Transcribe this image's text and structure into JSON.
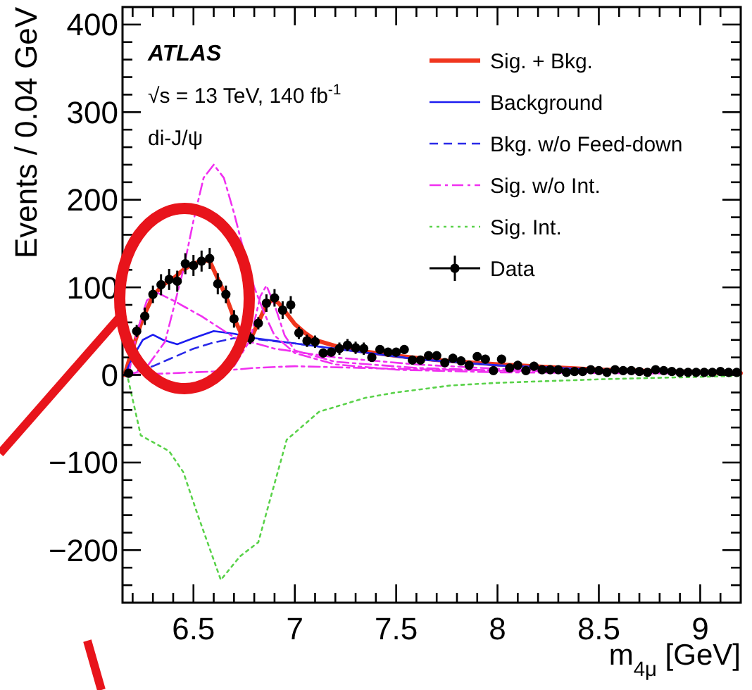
{
  "chart_data": {
    "type": "line",
    "xlabel": "m$_{4μ}$ [GeV]",
    "ylabel": "Events / 0.04 GeV",
    "annotations": [
      "ATLAS",
      "√s = 13 TeV, 140 fb$^{-1}$",
      "di-J/ψ"
    ],
    "xlim": [
      6.15,
      9.2
    ],
    "ylim": [
      -260,
      420
    ],
    "xticks": [
      {
        "value": 6.2,
        "label": null
      },
      {
        "value": 6.3,
        "label": null
      },
      {
        "value": 6.4,
        "label": null
      },
      6.5,
      {
        "value": 6.6,
        "label": null
      },
      {
        "value": 6.7,
        "label": null
      },
      {
        "value": 6.8,
        "label": null
      },
      {
        "value": 6.9,
        "label": null
      },
      7,
      {
        "value": 7.1,
        "label": null
      },
      {
        "value": 7.2,
        "label": null
      },
      {
        "value": 7.3,
        "label": null
      },
      {
        "value": 7.4,
        "label": null
      },
      7.5,
      {
        "value": 7.6,
        "label": null
      },
      {
        "value": 7.7,
        "label": null
      },
      {
        "value": 7.8,
        "label": null
      },
      {
        "value": 7.9,
        "label": null
      },
      8,
      {
        "value": 8.1,
        "label": null
      },
      {
        "value": 8.2,
        "label": null
      },
      {
        "value": 8.3,
        "label": null
      },
      {
        "value": 8.4,
        "label": null
      },
      8.5,
      {
        "value": 8.6,
        "label": null
      },
      {
        "value": 8.7,
        "label": null
      },
      {
        "value": 8.8,
        "label": null
      },
      {
        "value": 8.9,
        "label": null
      },
      9,
      {
        "value": 9.1,
        "label": null
      }
    ],
    "yticks": [
      {
        "value": -240,
        "label": null
      },
      {
        "value": -220,
        "label": null
      },
      {
        "value": -200,
        "label": "−200"
      },
      {
        "value": -180,
        "label": null
      },
      {
        "value": -160,
        "label": null
      },
      {
        "value": -140,
        "label": null
      },
      {
        "value": -120,
        "label": null
      },
      {
        "value": -100,
        "label": "−100"
      },
      {
        "value": -80,
        "label": null
      },
      {
        "value": -60,
        "label": null
      },
      {
        "value": -40,
        "label": null
      },
      {
        "value": -20,
        "label": null
      },
      0,
      {
        "value": 20,
        "label": null
      },
      {
        "value": 40,
        "label": null
      },
      {
        "value": 60,
        "label": null
      },
      {
        "value": 80,
        "label": null
      },
      100,
      {
        "value": 120,
        "label": null
      },
      {
        "value": 140,
        "label": null
      },
      {
        "value": 160,
        "label": null
      },
      {
        "value": 180,
        "label": null
      },
      200,
      {
        "value": 220,
        "label": null
      },
      {
        "value": 240,
        "label": null
      },
      {
        "value": 260,
        "label": null
      },
      {
        "value": 280,
        "label": null
      },
      300,
      {
        "value": 320,
        "label": null
      },
      {
        "value": 340,
        "label": null
      },
      {
        "value": 360,
        "label": null
      },
      {
        "value": 380,
        "label": null
      },
      400
    ],
    "grid": false,
    "legend": "top right",
    "series": [
      {
        "name": "Sig. + Bkg.",
        "color": "#f0361e",
        "line_style": "solid",
        "x": [
          6.16,
          6.2,
          6.25,
          6.3,
          6.35,
          6.4,
          6.45,
          6.5,
          6.55,
          6.58,
          6.62,
          6.66,
          6.7,
          6.74,
          6.78,
          6.82,
          6.86,
          6.89,
          6.92,
          6.96,
          7.0,
          7.05,
          7.1,
          7.2,
          7.3,
          7.5,
          7.7,
          8.0,
          8.5,
          9.0,
          9.2
        ],
        "values": [
          0,
          30,
          65,
          90,
          103,
          110,
          120,
          127,
          131,
          130,
          110,
          90,
          65,
          45,
          40,
          60,
          80,
          86,
          82,
          70,
          58,
          48,
          40,
          33,
          28,
          22,
          17,
          12,
          6,
          3,
          2
        ]
      },
      {
        "name": "Background",
        "color": "#1c1cf0",
        "line_style": "solid",
        "x": [
          6.16,
          6.2,
          6.25,
          6.3,
          6.35,
          6.42,
          6.5,
          6.6,
          6.7,
          6.8,
          7.0,
          7.2,
          7.6,
          8.0,
          8.5,
          9.0,
          9.2
        ],
        "values": [
          0,
          20,
          40,
          46,
          40,
          35,
          42,
          50,
          47,
          42,
          36,
          30,
          18,
          11,
          6,
          3,
          2
        ]
      },
      {
        "name": "Bkg. w/o Feed-down",
        "color": "#2a2ae8",
        "line_style": "dashed",
        "x": [
          6.16,
          6.3,
          6.4,
          6.5,
          6.6,
          6.7,
          6.8,
          7.0,
          7.2,
          7.6,
          8.0,
          8.5,
          9.0,
          9.2
        ],
        "values": [
          0,
          10,
          20,
          30,
          37,
          42,
          41,
          36,
          30,
          18,
          11,
          6,
          3,
          2
        ]
      },
      {
        "name": "Sig. w/o Int.",
        "color": "#f030f0",
        "line_style": "dashdot",
        "x": [
          6.18,
          6.26,
          6.36,
          6.45,
          6.5,
          6.55,
          6.6,
          6.65,
          6.7,
          6.75,
          6.8,
          6.85,
          6.9,
          7.0,
          7.2,
          7.5,
          8.0,
          9.2
        ],
        "values": [
          0,
          6,
          38,
          120,
          176,
          225,
          240,
          225,
          185,
          140,
          100,
          70,
          45,
          25,
          12,
          6,
          3,
          1
        ]
      },
      {
        "color": "#f030f0",
        "line_style": "dashdot",
        "x": [
          6.18,
          6.22,
          6.27,
          6.32,
          6.4,
          6.54,
          6.7,
          6.9,
          7.2,
          7.6,
          8.0,
          8.5,
          9.2
        ],
        "values": [
          0,
          48,
          85,
          94,
          85,
          67,
          43,
          30,
          20,
          12,
          7,
          4,
          2
        ]
      },
      {
        "color": "#f030f0",
        "line_style": "dashdot",
        "x": [
          6.6,
          6.7,
          6.78,
          6.83,
          6.86,
          6.9,
          6.95,
          7.0,
          7.2,
          7.6,
          8.0,
          9.2
        ],
        "values": [
          0,
          10,
          40,
          90,
          102,
          80,
          45,
          28,
          15,
          8,
          5,
          2
        ]
      },
      {
        "color": "#f030f0",
        "line_style": "dashdot",
        "x": [
          6.18,
          6.4,
          6.6,
          6.8,
          7.0,
          7.5,
          8.0,
          9.2
        ],
        "values": [
          0,
          2,
          4,
          8,
          10,
          7,
          5,
          2
        ]
      },
      {
        "name": "Sig. Int.",
        "color": "#5ad24a",
        "line_style": "dotted",
        "x": [
          6.17,
          6.24,
          6.38,
          6.45,
          6.52,
          6.635,
          6.73,
          6.82,
          6.87,
          6.96,
          7.12,
          7.35,
          7.5,
          7.77,
          8.0,
          8.5,
          9.2
        ],
        "values": [
          3,
          -69,
          -87,
          -111,
          -159,
          -234,
          -207,
          -191,
          -149,
          -74,
          -42,
          -26,
          -20,
          -12,
          -9,
          -5,
          -1
        ]
      },
      {
        "name": "Data",
        "type": "scatter",
        "color": "#000000",
        "marker": "circle",
        "x": [
          6.18,
          6.22,
          6.26,
          6.3,
          6.34,
          6.38,
          6.42,
          6.46,
          6.5,
          6.54,
          6.58,
          6.62,
          6.66,
          6.7,
          6.78,
          6.82,
          6.86,
          6.9,
          6.94,
          6.98,
          7.02,
          7.06,
          7.1,
          7.14,
          7.18,
          7.22,
          7.26,
          7.3,
          7.34,
          7.38,
          7.42,
          7.46,
          7.5,
          7.54,
          7.58,
          7.62,
          7.66,
          7.7,
          7.74,
          7.78,
          7.82,
          7.86,
          7.9,
          7.94,
          7.98,
          8.02,
          8.06,
          8.1,
          8.14,
          8.18,
          8.22,
          8.26,
          8.3,
          8.34,
          8.38,
          8.42,
          8.46,
          8.5,
          8.54,
          8.58,
          8.62,
          8.66,
          8.7,
          8.74,
          8.78,
          8.82,
          8.86,
          8.9,
          8.94,
          8.98,
          9.02,
          9.06,
          9.1,
          9.14,
          9.18
        ],
        "values": [
          2,
          50,
          67,
          92,
          103,
          109,
          107,
          127,
          125,
          130,
          133,
          104,
          92,
          64,
          42,
          59,
          82,
          88,
          74,
          80,
          48,
          39,
          38,
          25,
          26,
          30,
          34,
          31,
          30,
          20,
          29,
          26,
          26,
          29,
          17,
          17,
          22,
          22,
          14,
          19,
          16,
          11,
          21,
          18,
          5,
          18,
          8,
          11,
          5,
          10,
          6,
          6,
          6,
          3,
          4,
          4,
          6,
          5,
          3,
          6,
          5,
          5,
          4,
          3,
          6,
          5,
          4,
          3,
          3,
          3,
          3,
          3,
          4,
          3,
          3
        ],
        "errors": [
          3,
          7,
          10,
          10,
          12,
          12,
          12,
          12,
          12,
          12,
          12,
          12,
          10,
          10,
          7,
          7,
          10,
          10,
          10,
          10,
          7,
          7,
          7,
          5,
          5,
          7,
          7,
          7,
          7,
          5,
          5,
          5,
          5,
          5,
          5,
          5,
          5,
          5,
          5,
          5,
          5,
          5,
          5,
          5,
          3,
          5,
          3,
          5,
          3,
          5,
          3,
          3,
          3,
          3,
          3,
          3,
          3,
          3,
          3,
          3,
          3,
          3,
          3,
          3,
          3,
          3,
          3,
          3,
          3,
          3,
          3,
          3,
          3,
          3,
          3
        ]
      }
    ]
  }
}
